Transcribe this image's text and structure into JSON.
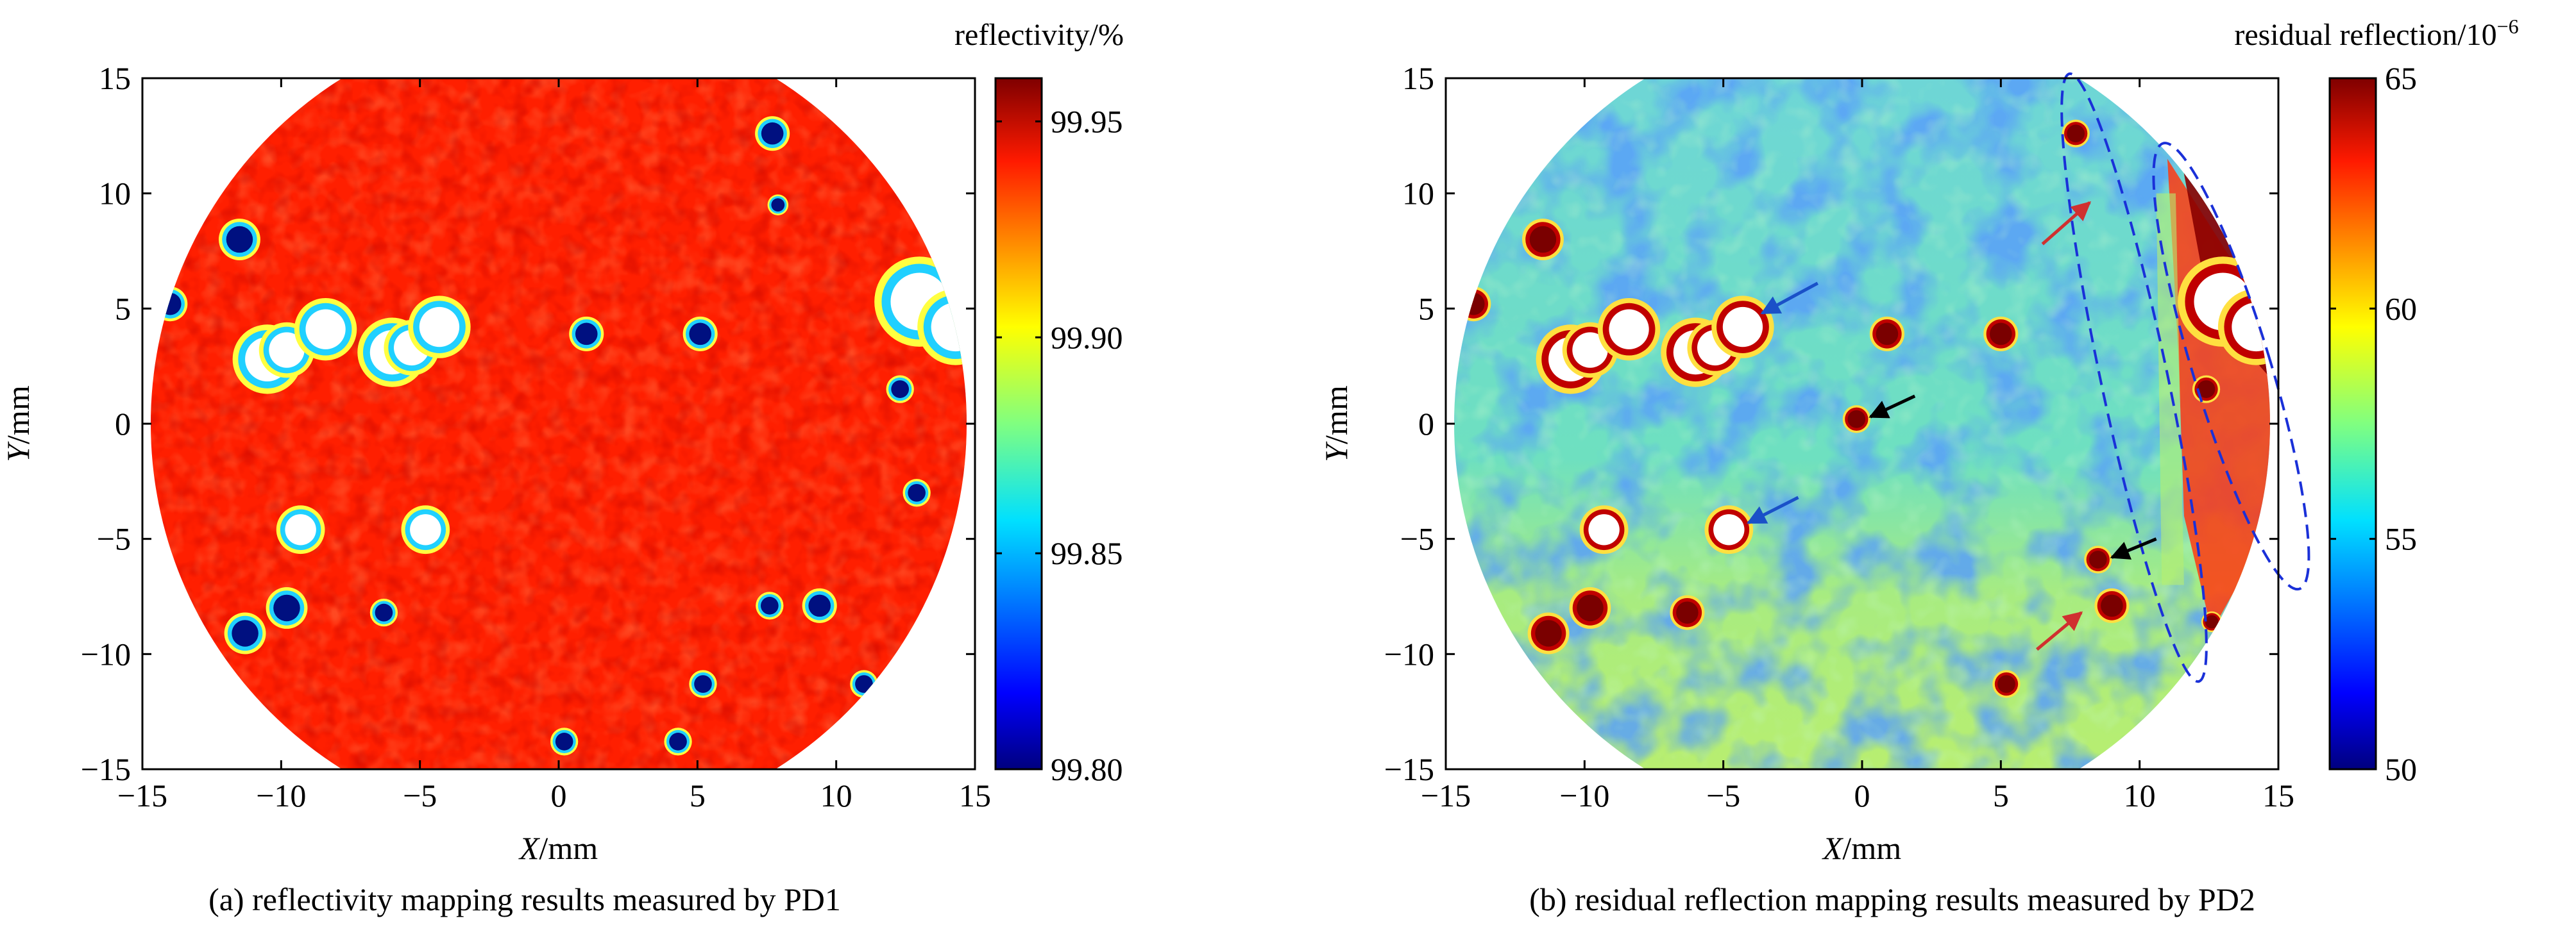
{
  "chart_data": [
    {
      "type": "heatmap",
      "panel_id": "a",
      "caption": "(a)  reflectivity mapping results measured by PD1",
      "xlabel_var": "X",
      "xlabel_unit": "/mm",
      "ylabel_var": "Y",
      "ylabel_unit": "/mm",
      "xlim": [
        -15,
        15
      ],
      "ylim": [
        -15,
        15
      ],
      "xticks": [
        -15,
        -10,
        -5,
        0,
        5,
        10,
        15
      ],
      "yticks": [
        -15,
        -10,
        -5,
        0,
        5,
        10,
        15
      ],
      "aperture_radius_mm": 14.7,
      "colorbar": {
        "label": "reflectivity/%",
        "range": [
          99.8,
          99.96
        ],
        "ticks": [
          99.8,
          99.85,
          99.9,
          99.95
        ],
        "tick_labels": [
          "99.80",
          "99.85",
          "99.90",
          "99.95"
        ]
      },
      "background_level": 99.94,
      "defects": [
        {
          "x": -11.5,
          "y": 8.0,
          "r": 0.6,
          "kind": "point"
        },
        {
          "x": -14.0,
          "y": 5.2,
          "r": 0.5,
          "kind": "point"
        },
        {
          "x": -10.5,
          "y": 2.8,
          "r": 1.0,
          "kind": "void"
        },
        {
          "x": -9.8,
          "y": 3.2,
          "r": 0.8,
          "kind": "void"
        },
        {
          "x": -8.4,
          "y": 4.1,
          "r": 0.9,
          "kind": "void"
        },
        {
          "x": -6.0,
          "y": 3.1,
          "r": 1.0,
          "kind": "void"
        },
        {
          "x": -5.3,
          "y": 3.3,
          "r": 0.8,
          "kind": "void"
        },
        {
          "x": -4.3,
          "y": 4.2,
          "r": 0.9,
          "kind": "void"
        },
        {
          "x": 1.0,
          "y": 3.9,
          "r": 0.5,
          "kind": "point"
        },
        {
          "x": 5.1,
          "y": 3.9,
          "r": 0.5,
          "kind": "point"
        },
        {
          "x": 13.0,
          "y": 5.3,
          "r": 1.3,
          "kind": "void"
        },
        {
          "x": 14.3,
          "y": 4.2,
          "r": 1.1,
          "kind": "void"
        },
        {
          "x": 7.7,
          "y": 12.6,
          "r": 0.5,
          "kind": "point"
        },
        {
          "x": 12.3,
          "y": 1.5,
          "r": 0.4,
          "kind": "point"
        },
        {
          "x": -9.3,
          "y": -4.6,
          "r": 0.7,
          "kind": "void"
        },
        {
          "x": -4.8,
          "y": -4.6,
          "r": 0.7,
          "kind": "void"
        },
        {
          "x": -9.8,
          "y": -8.0,
          "r": 0.6,
          "kind": "point"
        },
        {
          "x": -11.3,
          "y": -9.1,
          "r": 0.6,
          "kind": "point"
        },
        {
          "x": -6.3,
          "y": -8.2,
          "r": 0.4,
          "kind": "point"
        },
        {
          "x": 7.6,
          "y": -7.9,
          "r": 0.4,
          "kind": "point"
        },
        {
          "x": 9.4,
          "y": -7.9,
          "r": 0.5,
          "kind": "point"
        },
        {
          "x": 5.2,
          "y": -11.3,
          "r": 0.4,
          "kind": "point"
        },
        {
          "x": 0.2,
          "y": -13.8,
          "r": 0.4,
          "kind": "point"
        },
        {
          "x": 4.3,
          "y": -13.8,
          "r": 0.4,
          "kind": "point"
        },
        {
          "x": 12.9,
          "y": -3.0,
          "r": 0.4,
          "kind": "point"
        },
        {
          "x": 11.0,
          "y": -11.3,
          "r": 0.4,
          "kind": "point"
        },
        {
          "x": 7.9,
          "y": 9.5,
          "r": 0.3,
          "kind": "point"
        }
      ]
    },
    {
      "type": "heatmap",
      "panel_id": "b",
      "caption": "(b)  residual reflection mapping results measured by PD2",
      "xlabel_var": "X",
      "xlabel_unit": "/mm",
      "ylabel_var": "Y",
      "ylabel_unit": "/mm",
      "xlim": [
        -15,
        15
      ],
      "ylim": [
        -15,
        15
      ],
      "xticks": [
        -15,
        -10,
        -5,
        0,
        5,
        10,
        15
      ],
      "yticks": [
        -15,
        -10,
        -5,
        0,
        5,
        10,
        15
      ],
      "aperture_radius_mm": 14.7,
      "colorbar": {
        "label": "residual reflection/10",
        "label_exponent": "−6",
        "range": [
          50,
          65
        ],
        "ticks": [
          50,
          55,
          60,
          65
        ],
        "tick_labels": [
          "50",
          "55",
          "60",
          "65"
        ]
      },
      "background_level": 56,
      "defects": [
        {
          "x": -11.5,
          "y": 8.0,
          "r": 0.6,
          "kind": "point"
        },
        {
          "x": -14.0,
          "y": 5.2,
          "r": 0.5,
          "kind": "point"
        },
        {
          "x": -10.5,
          "y": 2.8,
          "r": 1.0,
          "kind": "void"
        },
        {
          "x": -9.8,
          "y": 3.2,
          "r": 0.8,
          "kind": "void"
        },
        {
          "x": -8.4,
          "y": 4.1,
          "r": 0.9,
          "kind": "void"
        },
        {
          "x": -6.0,
          "y": 3.1,
          "r": 1.0,
          "kind": "void"
        },
        {
          "x": -5.3,
          "y": 3.3,
          "r": 0.8,
          "kind": "void"
        },
        {
          "x": -4.3,
          "y": 4.2,
          "r": 0.9,
          "kind": "void"
        },
        {
          "x": 0.9,
          "y": 3.9,
          "r": 0.5,
          "kind": "point"
        },
        {
          "x": 5.0,
          "y": 3.9,
          "r": 0.5,
          "kind": "point"
        },
        {
          "x": -0.2,
          "y": 0.2,
          "r": 0.4,
          "kind": "point"
        },
        {
          "x": 8.5,
          "y": -5.9,
          "r": 0.4,
          "kind": "point"
        },
        {
          "x": -9.3,
          "y": -4.6,
          "r": 0.7,
          "kind": "void"
        },
        {
          "x": -4.8,
          "y": -4.6,
          "r": 0.7,
          "kind": "void"
        },
        {
          "x": -9.8,
          "y": -8.0,
          "r": 0.6,
          "kind": "point"
        },
        {
          "x": -11.3,
          "y": -9.1,
          "r": 0.6,
          "kind": "point"
        },
        {
          "x": -6.3,
          "y": -8.2,
          "r": 0.5,
          "kind": "point"
        },
        {
          "x": 9.0,
          "y": -7.9,
          "r": 0.5,
          "kind": "point"
        },
        {
          "x": 5.2,
          "y": -11.3,
          "r": 0.4,
          "kind": "point"
        },
        {
          "x": 12.6,
          "y": -8.6,
          "r": 0.3,
          "kind": "point"
        },
        {
          "x": 12.4,
          "y": 1.5,
          "r": 0.4,
          "kind": "point"
        },
        {
          "x": 13.0,
          "y": 5.3,
          "r": 1.3,
          "kind": "void"
        },
        {
          "x": 14.2,
          "y": 4.2,
          "r": 1.1,
          "kind": "void"
        },
        {
          "x": 7.7,
          "y": 12.6,
          "r": 0.4,
          "kind": "point"
        }
      ],
      "annotations": {
        "ellipses": [
          {
            "cx": 9.8,
            "cy": 2.0,
            "rx": 1.2,
            "ry": 11.2,
            "rotate_deg": -12
          },
          {
            "cx": 13.3,
            "cy": 2.5,
            "rx": 1.4,
            "ry": 8.4,
            "rotate_deg": -17
          }
        ],
        "arrows": [
          {
            "color": "#d03030",
            "x1": 6.5,
            "y1": 7.8,
            "x2": 8.2,
            "y2": 9.6
          },
          {
            "color": "#d03030",
            "x1": 6.3,
            "y1": -9.8,
            "x2": 7.9,
            "y2": -8.2
          },
          {
            "color": "#1a50c8",
            "x1": -1.6,
            "y1": 6.1,
            "x2": -3.6,
            "y2": 4.8
          },
          {
            "color": "#1a50c8",
            "x1": -2.3,
            "y1": -3.2,
            "x2": -4.1,
            "y2": -4.3
          },
          {
            "color": "#000000",
            "x1": 1.9,
            "y1": 1.2,
            "x2": 0.3,
            "y2": 0.3
          },
          {
            "color": "#000000",
            "x1": 10.6,
            "y1": -5.0,
            "x2": 9.0,
            "y2": -5.8
          }
        ]
      }
    }
  ]
}
